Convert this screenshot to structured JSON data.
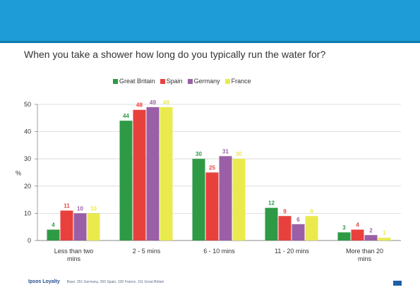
{
  "header": {
    "question": "When you take a shower how long do you typically run the water for?"
  },
  "footer": {
    "brand": "Ipsos Loyalty",
    "base": "Base: 351 Germany, 350 Spain, 330 France, 311 Great Britain"
  },
  "colors": {
    "banner": "#1e9cd7",
    "great_britain": "#2e9a45",
    "spain": "#e8413d",
    "germany": "#9a5fa6",
    "france": "#eaea4e"
  },
  "chart_data": {
    "type": "bar",
    "title": "",
    "ylabel": "%",
    "xlabel": "",
    "ylim": [
      0,
      50
    ],
    "yticks": [
      0,
      10,
      20,
      30,
      40,
      50
    ],
    "grid": true,
    "legend_position": "top",
    "categories": [
      [
        "Less than two",
        "mins"
      ],
      [
        "2 - 5 mins"
      ],
      [
        "6 - 10 mins"
      ],
      [
        "11 - 20 mins"
      ],
      [
        "More than 20",
        "mins"
      ]
    ],
    "series": [
      {
        "name": "Great Britain",
        "color": "#2e9a45",
        "values": [
          4,
          44,
          30,
          12,
          3
        ]
      },
      {
        "name": "Spain",
        "color": "#e8413d",
        "values": [
          11,
          48,
          25,
          9,
          4
        ]
      },
      {
        "name": "Germany",
        "color": "#9a5fa6",
        "values": [
          10,
          49,
          31,
          6,
          2
        ]
      },
      {
        "name": "France",
        "color": "#eaea4e",
        "values": [
          10,
          49,
          30,
          9,
          1
        ]
      }
    ]
  }
}
